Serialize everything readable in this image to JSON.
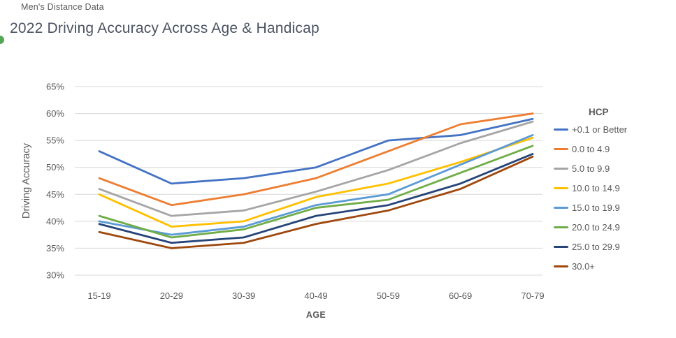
{
  "header": {
    "eyebrow": "Men's Distance Data",
    "title": "2022 Driving Accuracy Across Age & Handicap"
  },
  "decorations": {
    "accent_dot_color": "#53a757"
  },
  "chart_data": {
    "type": "line",
    "title": "2022 Driving Accuracy Across Age & Handicap",
    "xlabel": "AGE",
    "ylabel": "Driving Accuracy",
    "categories": [
      "15-19",
      "20-29",
      "30-39",
      "40-49",
      "50-59",
      "60-69",
      "70-79"
    ],
    "ylim": [
      30,
      65
    ],
    "ytick_step": 5,
    "ytick_suffix": "%",
    "grid": true,
    "gridline_color": "#d9d9d9",
    "axis_text_color": "#595959",
    "legend_title": "HCP",
    "legend_position": "right",
    "series": [
      {
        "name": "+0.1 or Better",
        "color": "#4472C4",
        "values": [
          53,
          47,
          48,
          50,
          55,
          56,
          59
        ]
      },
      {
        "name": "0.0 to 4.9",
        "color": "#ED7D31",
        "values": [
          48,
          43,
          45,
          48,
          53,
          58,
          60
        ]
      },
      {
        "name": "5.0 to 9.9",
        "color": "#A5A5A5",
        "values": [
          46,
          41,
          42,
          45.5,
          49.5,
          54.5,
          58.5
        ]
      },
      {
        "name": "10.0 to 14.9",
        "color": "#FFC000",
        "values": [
          45,
          39,
          40,
          44.5,
          47,
          51,
          55.5
        ]
      },
      {
        "name": "15.0 to 19.9",
        "color": "#5B9BD5",
        "values": [
          40,
          37.5,
          39,
          43,
          45,
          50.5,
          56
        ]
      },
      {
        "name": "20.0 to 24.9",
        "color": "#70AD47",
        "values": [
          41,
          37,
          38.5,
          42.5,
          44,
          49,
          54
        ]
      },
      {
        "name": "25.0 to 29.9",
        "color": "#264478",
        "values": [
          39.5,
          36,
          37,
          41,
          43,
          47,
          52.5
        ]
      },
      {
        "name": "30.0+",
        "color": "#9E480E",
        "values": [
          38,
          35,
          36,
          39.5,
          42,
          46,
          52
        ]
      }
    ]
  }
}
